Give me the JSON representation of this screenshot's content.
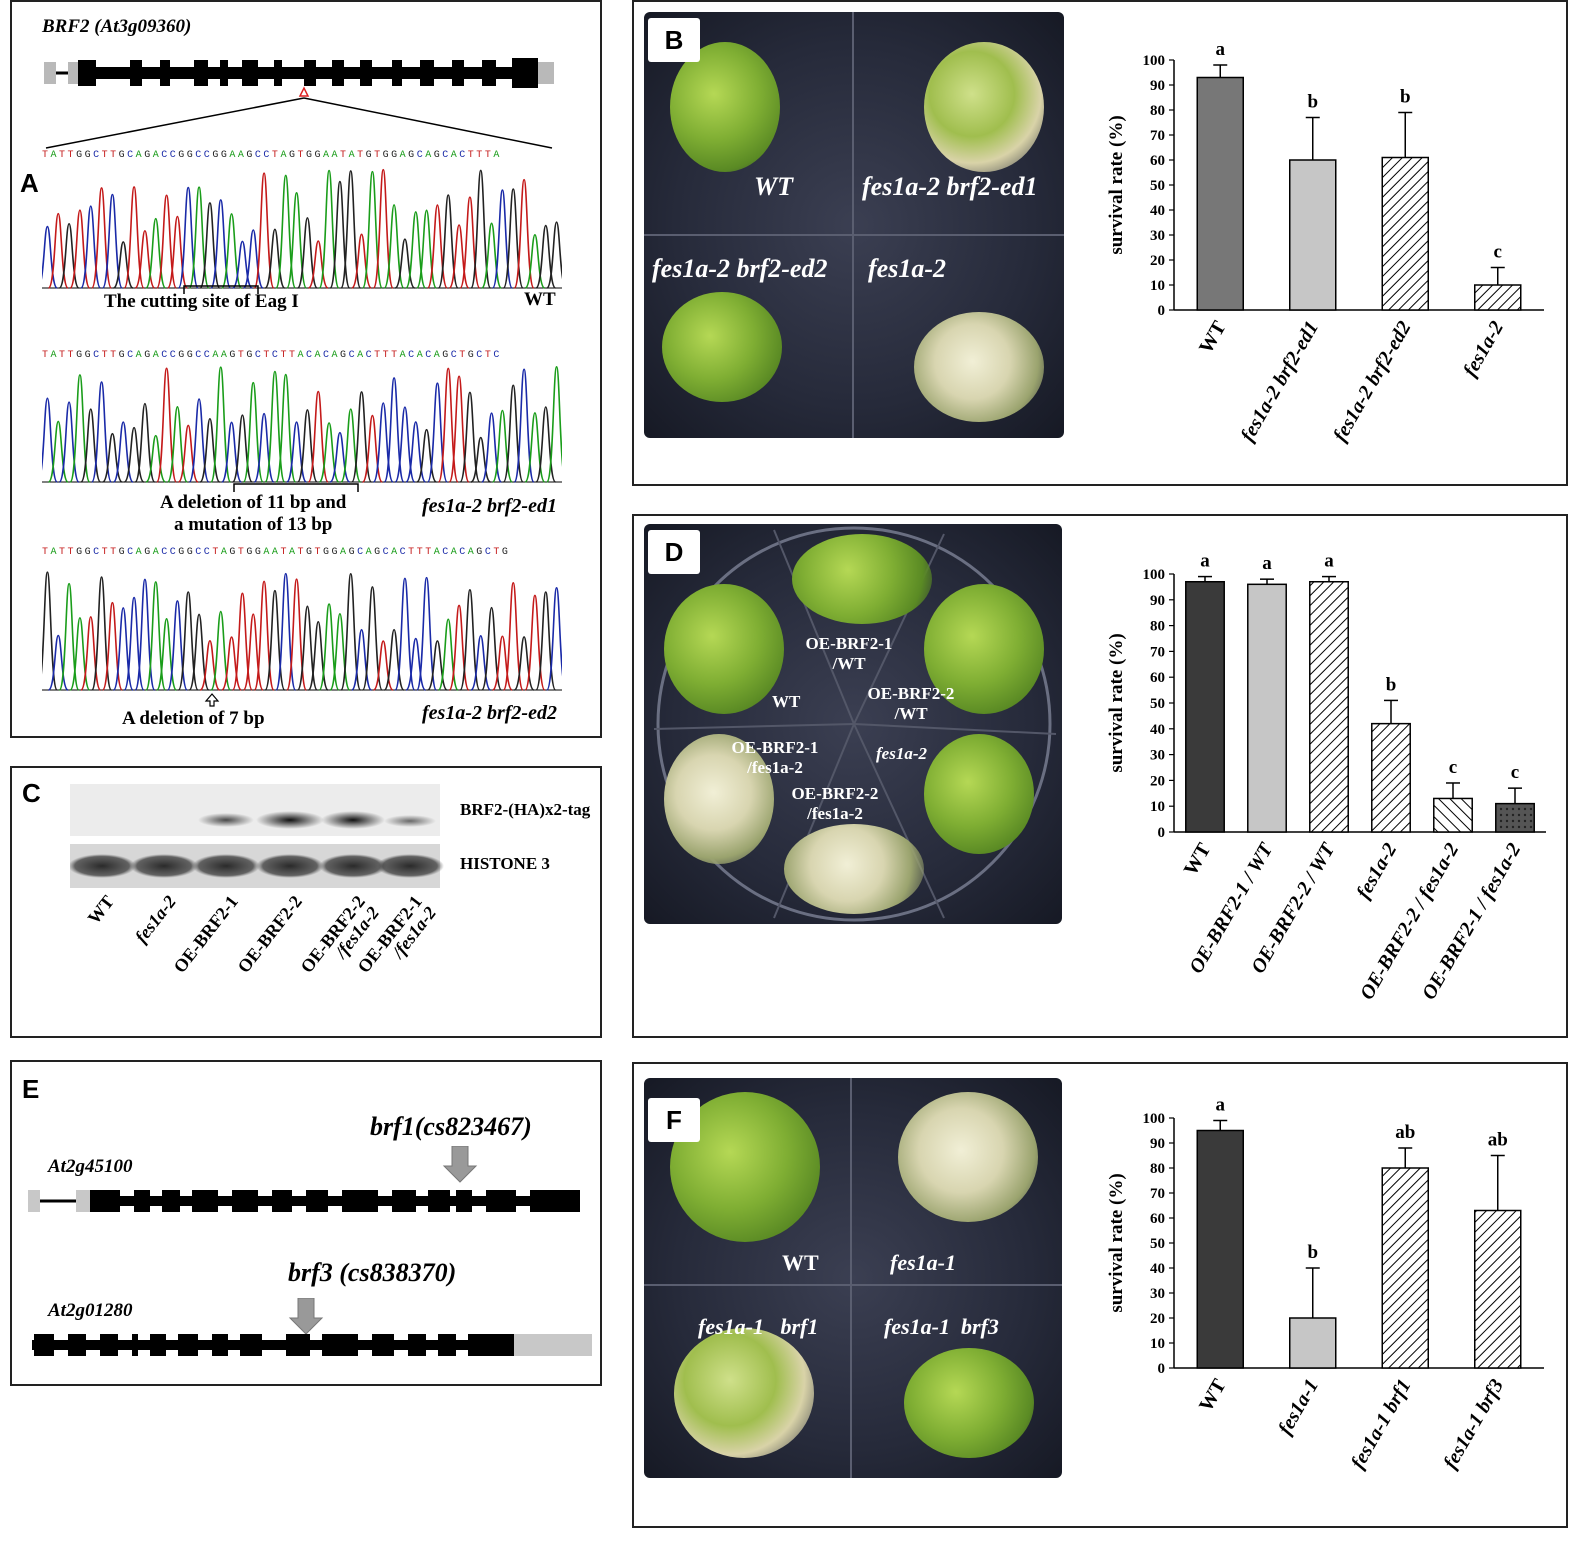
{
  "panels": {
    "A": {
      "label": "A",
      "gene_title": "BRF2 (At3g09360)",
      "seq1": "TATTGGCTTGCAGACCGGCCGGAAGCCTAGTGGAATATGTGGAGCAGCACTTTA",
      "seq2": "TATTGGCTTGCAGACCGGCCAAGTGCTCTTACACAGCACTTTACACAGCTGCTC",
      "seq3": "TATTGGCTTGCAGACCGGCCTAGTGGAATATGTGGAGCAGCACTTTACACAGCTG",
      "cut_site": "The  cutting site of Eag I",
      "wt": "WT",
      "ed1_note_1": "A deletion of 11 bp and",
      "ed1_note_2": "a mutation of 13 bp",
      "ed1_label": "fes1a-2 brf2-ed1",
      "ed2_note": "A deletion of 7 bp",
      "ed2_label": "fes1a-2 brf2-ed2"
    },
    "B": {
      "label": "B",
      "plate_labels": [
        "WT",
        "fes1a-2 brf2-ed1",
        "fes1a-2 brf2-ed2",
        "fes1a-2"
      ]
    },
    "C": {
      "label": "C",
      "band_label_1": "BRF2-(HA)x2-tag",
      "band_label_2": "HISTONE 3",
      "lanes": [
        "WT",
        "fes1a-2",
        "OE-BRF2-1",
        "OE-BRF2-2",
        "OE-BRF2-2 /fes1a-2",
        "OE-BRF2-1 /fes1a-2"
      ]
    },
    "D": {
      "label": "D",
      "plate_labels": [
        "OE-BRF2-1 /WT",
        "WT",
        "OE-BRF2-2 /WT",
        "OE-BRF2-1 /fes1a-2",
        "fes1a-2",
        "OE-BRF2-2 /fes1a-2"
      ]
    },
    "E": {
      "label": "E",
      "gene1": "At2g45100",
      "allele1": "brf1(cs823467)",
      "gene2": "At2g01280",
      "allele2": "brf3 (cs838370)"
    },
    "F": {
      "label": "F",
      "plate_labels": [
        "WT",
        "fes1a-1",
        "fes1a-1   brf1",
        "fes1a-1  brf3"
      ]
    }
  },
  "chart_data": [
    {
      "panel": "B",
      "type": "bar",
      "ylabel": "survival rate (%)",
      "ylim": [
        0,
        100
      ],
      "yticks": [
        0,
        10,
        20,
        30,
        40,
        50,
        60,
        70,
        80,
        90,
        100
      ],
      "categories": [
        "WT",
        "fes1a-2 brf2-ed1",
        "fes1a-2 brf2-ed2",
        "fes1a-2"
      ],
      "values": [
        93,
        60,
        61,
        10
      ],
      "errors": [
        5,
        17,
        18,
        7
      ],
      "letters": [
        "a",
        "b",
        "b",
        "c"
      ],
      "fills": [
        "solid-dark",
        "solid-light",
        "hatch",
        "hatch"
      ]
    },
    {
      "panel": "D",
      "type": "bar",
      "ylabel": "survival rate (%)",
      "ylim": [
        0,
        100
      ],
      "yticks": [
        0,
        10,
        20,
        30,
        40,
        50,
        60,
        70,
        80,
        90,
        100
      ],
      "categories": [
        "WT",
        "OE-BRF2-1 / WT",
        "OE-BRF2-2 / WT",
        "fes1a-2",
        "OE-BRF2-2 / fes1a-2",
        "OE-BRF2-1 / fes1a-2"
      ],
      "values": [
        97,
        96,
        97,
        42,
        13,
        11
      ],
      "errors": [
        2,
        2,
        2,
        9,
        6,
        6
      ],
      "letters": [
        "a",
        "a",
        "a",
        "b",
        "c",
        "c"
      ],
      "fills": [
        "solid-black",
        "solid-light",
        "hatch",
        "hatch",
        "hatch-rev",
        "cross"
      ]
    },
    {
      "panel": "F",
      "type": "bar",
      "ylabel": "survival rate (%)",
      "ylim": [
        0,
        100
      ],
      "yticks": [
        0,
        10,
        20,
        30,
        40,
        50,
        60,
        70,
        80,
        90,
        100
      ],
      "categories": [
        "WT",
        "fes1a-1",
        "fes1a-1 brf1",
        "fes1a-1 brf3"
      ],
      "values": [
        95,
        20,
        80,
        63
      ],
      "errors": [
        4,
        20,
        8,
        22
      ],
      "letters": [
        "a",
        "b",
        "ab",
        "ab"
      ],
      "fills": [
        "solid-black",
        "solid-light",
        "hatch",
        "hatch"
      ]
    }
  ]
}
